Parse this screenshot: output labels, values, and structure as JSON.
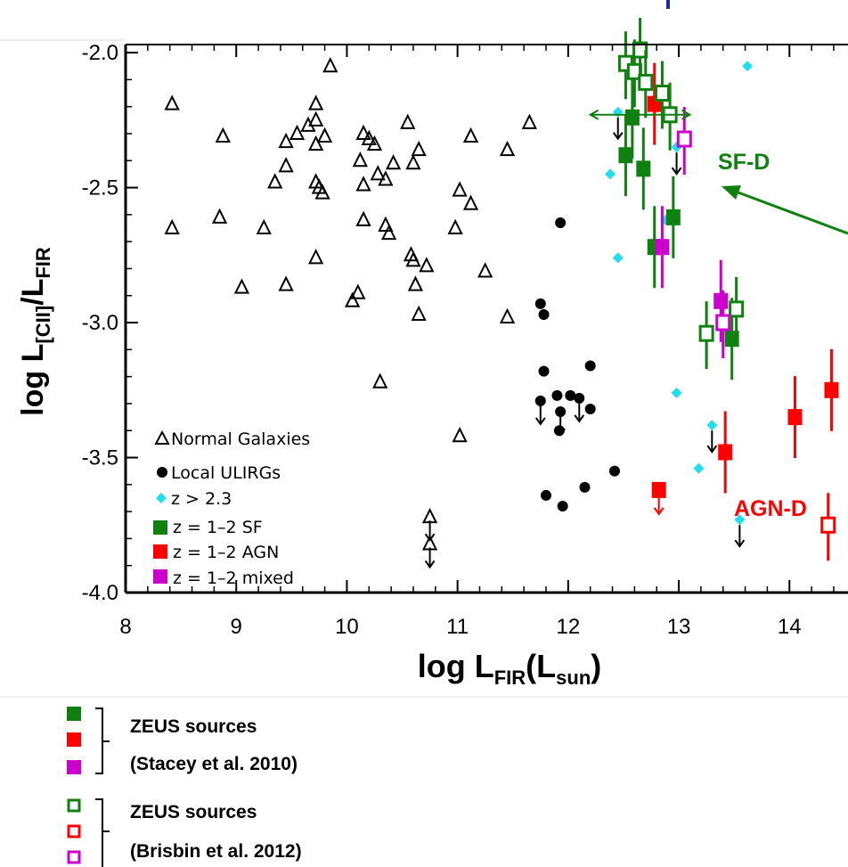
{
  "chart_data": {
    "type": "scatter",
    "xlabel": {
      "main": "log L",
      "sub": "FIR",
      "rest": "(L",
      "sub2": "sun",
      "close": ")"
    },
    "ylabel": {
      "main": "log L",
      "sub": "[CII]",
      "mid": "/L",
      "sub2": "FIR"
    },
    "xlim": [
      8,
      15.6
    ],
    "ylim": [
      -4.0,
      -1.97
    ],
    "xticks": [
      "8",
      "9",
      "10",
      "11",
      "12",
      "13",
      "14"
    ],
    "yticks": [
      "-2.0",
      "-2.5",
      "-3.0",
      "-3.5",
      "-4.0"
    ],
    "legend": [
      {
        "marker": "triangle",
        "label": "Normal Galaxies"
      },
      {
        "marker": "circle",
        "label": "Local ULIRGs"
      },
      {
        "marker": "diamond",
        "label": "z > 2.3"
      },
      {
        "marker": "square-green",
        "label": "z = 1–2 SF"
      },
      {
        "marker": "square-red",
        "label": "z = 1–2 AGN"
      },
      {
        "marker": "square-magenta",
        "label": "z = 1–2 mixed"
      }
    ],
    "series": [
      {
        "name": "Normal Galaxies",
        "marker": "triangle",
        "points": [
          [
            8.42,
            -2.19
          ],
          [
            8.42,
            -2.65
          ],
          [
            8.85,
            -2.61
          ],
          [
            8.88,
            -2.31
          ],
          [
            9.25,
            -2.65
          ],
          [
            9.05,
            -2.87
          ],
          [
            9.35,
            -2.48
          ],
          [
            9.45,
            -2.42
          ],
          [
            9.45,
            -2.33
          ],
          [
            9.45,
            -2.86
          ],
          [
            9.55,
            -2.3
          ],
          [
            9.65,
            -2.27
          ],
          [
            9.72,
            -2.19
          ],
          [
            9.72,
            -2.25
          ],
          [
            9.72,
            -2.34
          ],
          [
            9.72,
            -2.48
          ],
          [
            9.72,
            -2.76
          ],
          [
            9.75,
            -2.5
          ],
          [
            9.78,
            -2.52
          ],
          [
            9.8,
            -2.31
          ],
          [
            9.85,
            -2.05
          ],
          [
            10.05,
            -2.92
          ],
          [
            10.1,
            -2.89
          ],
          [
            10.12,
            -2.4
          ],
          [
            10.15,
            -2.49
          ],
          [
            10.15,
            -2.62
          ],
          [
            10.15,
            -2.3
          ],
          [
            10.2,
            -2.32
          ],
          [
            10.25,
            -2.34
          ],
          [
            10.28,
            -2.45
          ],
          [
            10.3,
            -3.22
          ],
          [
            10.35,
            -2.47
          ],
          [
            10.35,
            -2.64
          ],
          [
            10.38,
            -2.67
          ],
          [
            10.42,
            -2.41
          ],
          [
            10.55,
            -2.26
          ],
          [
            10.58,
            -2.75
          ],
          [
            10.6,
            -2.41
          ],
          [
            10.6,
            -2.77
          ],
          [
            10.62,
            -2.86
          ],
          [
            10.65,
            -2.36
          ],
          [
            10.65,
            -2.97
          ],
          [
            10.72,
            -2.79
          ],
          [
            10.98,
            -2.65
          ],
          [
            11.02,
            -2.51
          ],
          [
            11.02,
            -3.42
          ],
          [
            11.12,
            -2.31
          ],
          [
            11.12,
            -2.56
          ],
          [
            11.25,
            -2.81
          ],
          [
            11.45,
            -2.36
          ],
          [
            11.45,
            -2.98
          ],
          [
            11.65,
            -2.26
          ]
        ]
      },
      {
        "name": "Normal Galaxies (upper limits)",
        "marker": "triangle-arrow",
        "points": [
          [
            10.75,
            -3.72
          ],
          [
            10.75,
            -3.82
          ]
        ]
      },
      {
        "name": "Local ULIRGs",
        "marker": "circle",
        "points": [
          [
            11.75,
            -2.93
          ],
          [
            11.78,
            -2.97
          ],
          [
            11.78,
            -3.18
          ],
          [
            11.9,
            -3.27
          ],
          [
            11.92,
            -3.4
          ],
          [
            12.02,
            -3.27
          ],
          [
            11.8,
            -3.64
          ],
          [
            11.95,
            -3.68
          ],
          [
            12.15,
            -3.61
          ],
          [
            12.42,
            -3.55
          ],
          [
            12.2,
            -3.16
          ],
          [
            12.2,
            -3.32
          ],
          [
            11.93,
            -2.63
          ]
        ]
      },
      {
        "name": "Local ULIRGs (upper limits)",
        "marker": "circle-arrow",
        "points": [
          [
            11.75,
            -3.29
          ],
          [
            11.93,
            -3.33
          ],
          [
            12.1,
            -3.28
          ]
        ]
      },
      {
        "name": "z > 2.3",
        "marker": "diamond",
        "points": [
          [
            12.38,
            -2.45
          ],
          [
            12.45,
            -2.76
          ],
          [
            12.88,
            -2.62
          ],
          [
            12.98,
            -3.26
          ],
          [
            13.18,
            -3.54
          ],
          [
            13.62,
            -2.05
          ]
        ]
      },
      {
        "name": "z > 2.3 (upper limits)",
        "marker": "diamond-arrow",
        "points": [
          [
            12.45,
            -2.22
          ],
          [
            12.98,
            -2.35
          ],
          [
            13.3,
            -3.38
          ],
          [
            13.55,
            -3.73
          ]
        ]
      },
      {
        "name": "z = 1-2 SF",
        "marker": "square-filled",
        "color": "#108010",
        "points": [
          [
            12.52,
            -2.38
          ],
          [
            12.58,
            -2.24
          ],
          [
            12.68,
            -2.43
          ],
          [
            12.78,
            -2.72
          ],
          [
            12.95,
            -2.61
          ],
          [
            13.48,
            -3.06
          ]
        ]
      },
      {
        "name": "z = 1-2 AGN",
        "marker": "square-filled",
        "color": "#ff0000",
        "points": [
          [
            12.78,
            -2.19
          ],
          [
            13.42,
            -3.48
          ],
          [
            14.05,
            -3.35
          ],
          [
            14.38,
            -3.25
          ]
        ]
      },
      {
        "name": "z = 1-2 AGN (upper limits)",
        "marker": "square-arrow",
        "color": "#ff0000",
        "points": [
          [
            12.82,
            -3.62
          ]
        ]
      },
      {
        "name": "z = 1-2 mixed",
        "marker": "square-filled",
        "color": "#cc00cc",
        "points": [
          [
            12.85,
            -2.72
          ],
          [
            13.38,
            -2.92
          ]
        ]
      },
      {
        "name": "ZEUS SF (Brisbin)",
        "marker": "square-open",
        "color": "#108010",
        "points": [
          [
            12.52,
            -2.04
          ],
          [
            12.6,
            -2.07
          ],
          [
            12.65,
            -1.99
          ],
          [
            12.7,
            -2.11
          ],
          [
            12.85,
            -2.15
          ],
          [
            12.92,
            -2.23
          ],
          [
            13.25,
            -3.04
          ],
          [
            13.52,
            -2.95
          ]
        ]
      },
      {
        "name": "ZEUS AGN (Brisbin)",
        "marker": "square-open",
        "color": "#ff0000",
        "points": [
          [
            14.35,
            -3.75
          ]
        ]
      },
      {
        "name": "ZEUS mixed (Brisbin)",
        "marker": "square-open",
        "color": "#cc00cc",
        "points": [
          [
            13.05,
            -2.32
          ],
          [
            13.4,
            -3.0
          ]
        ]
      }
    ],
    "annotations": [
      {
        "text": "SF-D",
        "color": "#108010"
      },
      {
        "text": "AGN-D",
        "color": "#ff0000"
      }
    ]
  },
  "legend_below": {
    "group1": {
      "line1": "ZEUS sources",
      "line2": "(Stacey et al. 2010)"
    },
    "group2": {
      "line1": "ZEUS sources",
      "line2": "(Brisbin et al. 2012)"
    }
  }
}
